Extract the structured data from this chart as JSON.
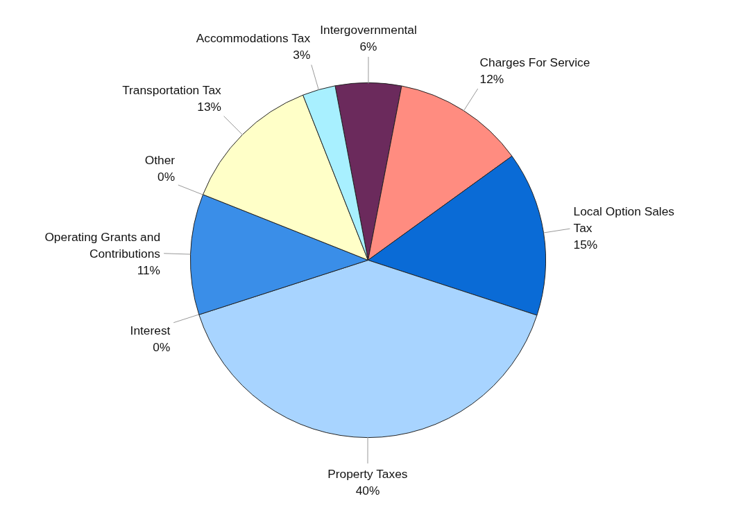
{
  "chart_data": {
    "type": "pie",
    "categories": [
      "Intergovernmental",
      "Charges For Service",
      "Local Option Sales Tax",
      "Property Taxes",
      "Interest",
      "Operating Grants and Contributions",
      "Other",
      "Transportation Tax",
      "Accommodations Tax"
    ],
    "values": [
      6,
      12,
      15,
      40,
      0,
      11,
      0,
      13,
      3
    ],
    "value_labels": [
      "6%",
      "12%",
      "15%",
      "40%",
      "0%",
      "11%",
      "0%",
      "13%",
      "3%"
    ],
    "colors": [
      "#6b2a5c",
      "#ff8c80",
      "#0a6bd6",
      "#a8d4ff",
      "#1a5fa0",
      "#3a8ee8",
      "#fff6c0",
      "#ffffc8",
      "#a8f0ff"
    ]
  }
}
